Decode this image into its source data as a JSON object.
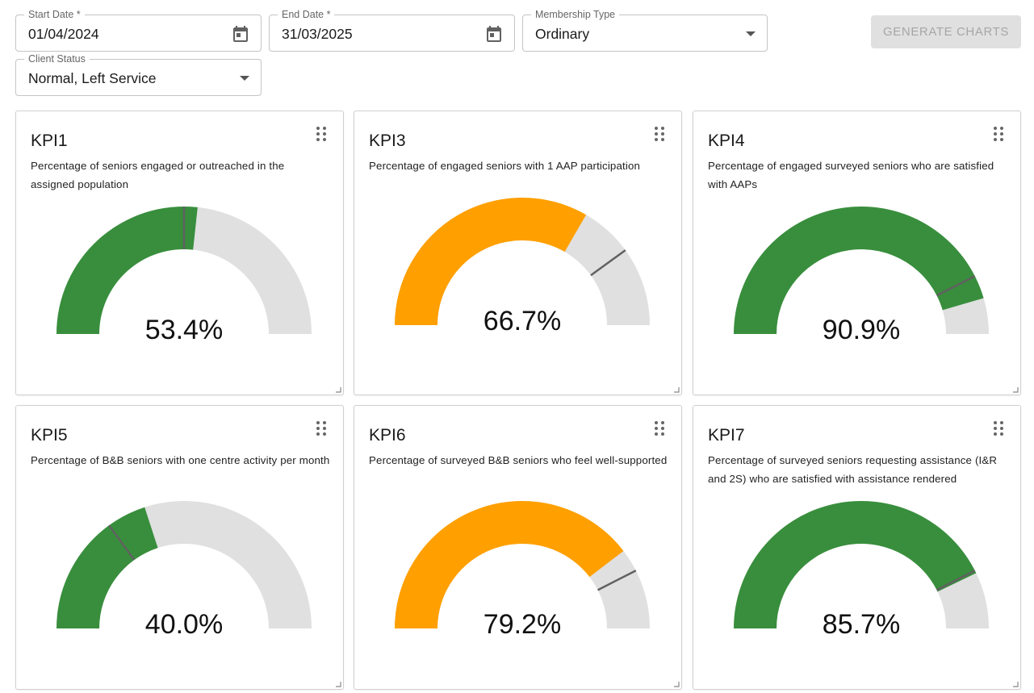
{
  "filters": {
    "start_date": {
      "label": "Start Date *",
      "value": "01/04/2024"
    },
    "end_date": {
      "label": "End Date *",
      "value": "31/03/2025"
    },
    "membership_type": {
      "label": "Membership Type",
      "value": "Ordinary"
    },
    "client_status": {
      "label": "Client Status",
      "value": "Normal, Left Service"
    },
    "generate_label": "GENERATE CHARTS"
  },
  "colors": {
    "good": "#388e3c",
    "warning": "#ffa000",
    "track": "#e0e0e0",
    "target_marker": "#616161"
  },
  "kpis": [
    {
      "title": "KPI1",
      "description": "Percentage of seniors engaged or outreached in the assigned population",
      "value": 53.4,
      "value_label": "53.4%",
      "target": 50,
      "status": "good"
    },
    {
      "title": "KPI3",
      "description": "Percentage of engaged seniors with 1 AAP participation",
      "value": 66.7,
      "value_label": "66.7%",
      "target": 80,
      "status": "warning"
    },
    {
      "title": "KPI4",
      "description": "Percentage of engaged surveyed seniors who are satisfied with AAPs",
      "value": 90.9,
      "value_label": "90.9%",
      "target": 85,
      "status": "good"
    },
    {
      "title": "KPI5",
      "description": "Percentage of B&B seniors with one centre activity per month",
      "value": 40.0,
      "value_label": "40.0%",
      "target": 30,
      "status": "good"
    },
    {
      "title": "KPI6",
      "description": "Percentage of surveyed B&B seniors who feel well-supported",
      "value": 79.2,
      "value_label": "79.2%",
      "target": 85,
      "status": "warning"
    },
    {
      "title": "KPI7",
      "description": "Percentage of surveyed seniors requesting assistance (I&R and 2S) who are satisfied with assistance rendered",
      "value": 85.7,
      "value_label": "85.7%",
      "target": 85,
      "status": "good"
    }
  ]
}
